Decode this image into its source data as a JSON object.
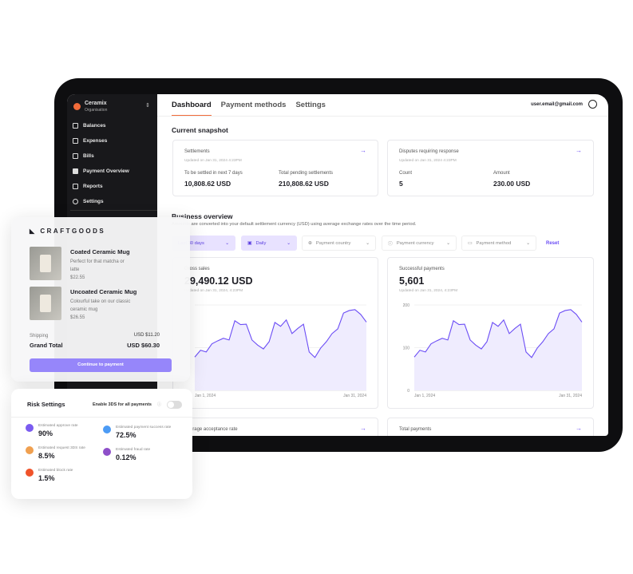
{
  "sidebar": {
    "org_name": "Ceramix",
    "org_sub": "Organisation",
    "items": [
      {
        "label": "Balances",
        "icon": "bank-icon"
      },
      {
        "label": "Expenses",
        "icon": "receipt-icon"
      },
      {
        "label": "Bills",
        "icon": "bill-icon"
      },
      {
        "label": "Payment Overview",
        "icon": "square-icon"
      },
      {
        "label": "Reports",
        "icon": "document-icon"
      },
      {
        "label": "Settings",
        "icon": "gear-icon"
      }
    ]
  },
  "header": {
    "tabs": [
      "Dashboard",
      "Payment methods",
      "Settings"
    ],
    "active_tab": "Dashboard",
    "email": "user.email@gmail.com"
  },
  "snapshot": {
    "title": "Current snapshot",
    "settlements": {
      "title": "Settlements",
      "updated": "Updated on Jan 31, 2024 4:23PM",
      "col1_label": "To be settled in next 7 days",
      "col1_value": "10,808.62 USD",
      "col2_label": "Total pending settlements",
      "col2_value": "210,808.62 USD"
    },
    "disputes": {
      "title": "Disputes requiring response",
      "updated": "Updated on Jan 31, 2024 4:23PM",
      "col1_label": "Count",
      "col1_value": "5",
      "col2_label": "Amount",
      "col2_value": "230.00 USD"
    }
  },
  "business": {
    "title": "Business overview",
    "note": "Amounts are converted into your default settlement currency (USD) using average exchange rates over the time period.",
    "filters": [
      "Last 30 days",
      "Daily",
      "Payment country",
      "Payment currency",
      "Payment method"
    ],
    "reset": "Reset",
    "gross": {
      "title": "Gross sales",
      "value": "29,490.12 USD",
      "updated": "Updated on Jan 31, 2024, 4:23PM"
    },
    "success": {
      "title": "Successful payments",
      "value": "5,601",
      "updated": "Updated on Jan 31, 2024, 4:23PM"
    },
    "acceptance": {
      "title": "Average acceptance rate"
    },
    "total": {
      "title": "Total payments"
    }
  },
  "chart_data": [
    {
      "type": "area",
      "title": "Gross sales",
      "x_start": "Jan 1, 2024",
      "x_end": "Jan 31, 2024",
      "xticks": [
        "Jan 1, 2024",
        "Jan 31, 2024"
      ],
      "values": [
        78,
        94,
        90,
        109,
        116,
        122,
        118,
        163,
        154,
        155,
        118,
        106,
        97,
        114,
        159,
        150,
        165,
        133,
        145,
        155,
        90,
        77,
        99,
        114,
        133,
        144,
        181,
        187,
        189,
        178,
        160
      ],
      "color": "#6b4df5",
      "grid": true
    },
    {
      "type": "area",
      "title": "Successful payments",
      "x_start": "Jan 1, 2024",
      "x_end": "Jan 31, 2024",
      "xticks": [
        "Jan 1, 2024",
        "Jan 31, 2024"
      ],
      "yticks": [
        "0",
        "100",
        "200"
      ],
      "ylim": [
        0,
        200
      ],
      "values": [
        78,
        94,
        90,
        109,
        116,
        122,
        118,
        163,
        154,
        155,
        118,
        106,
        97,
        114,
        159,
        150,
        165,
        133,
        145,
        155,
        90,
        77,
        99,
        114,
        133,
        144,
        181,
        187,
        189,
        178,
        160
      ],
      "color": "#6b4df5",
      "grid": true
    }
  ],
  "shop": {
    "brand": "CRAFTGOODS",
    "products": [
      {
        "name": "Coated Ceramic Mug",
        "desc": "Perfect for that matcha or latte",
        "price": "$22.55"
      },
      {
        "name": "Uncoated Ceramic Mug",
        "desc": "Colourful take on our classic ceramic mug",
        "price": "$26.55"
      }
    ],
    "shipping_label": "Shipping",
    "shipping_value": "USD $11.20",
    "total_label": "Grand Total",
    "total_value": "USD $60.30",
    "button": "Continue to payment"
  },
  "risk": {
    "title": "Risk Settings",
    "toggle_label": "Enable 3DS for all payments",
    "toggle_on": false,
    "metrics": [
      {
        "label": "Estimated approve rate",
        "value": "90%",
        "color": "#7b5cf0"
      },
      {
        "label": "Estimated payment success rate",
        "value": "72.5%",
        "color": "#4c9bf5"
      },
      {
        "label": "Estimated request 3DS rate",
        "value": "8.5%",
        "color": "#f0a050"
      },
      {
        "label": "Estimated fraud rate",
        "value": "0.12%",
        "color": "#8e4fc9"
      },
      {
        "label": "Estimated block rate",
        "value": "1.5%",
        "color": "#f0532a"
      }
    ]
  }
}
